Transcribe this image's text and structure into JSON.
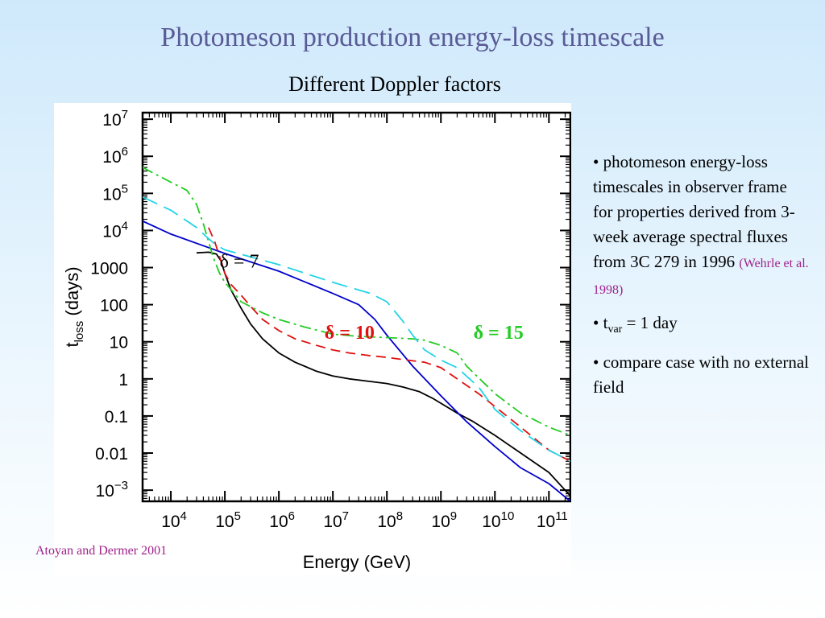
{
  "slide": {
    "title": "Photomeson production energy-loss timescale",
    "subtitle": "Different Doppler factors",
    "credit": "Atoyan and Dermer 2001"
  },
  "bullets": {
    "b1_text": "• photomeson energy-loss timescales in observer frame for properties derived from 3-week average spectral fluxes from 3C 279 in 1996",
    "b1_cite": "(Wehrle et al. 1998)",
    "b2_prefix": "• t",
    "b2_sub": "var",
    "b2_suffix": " = 1 day",
    "b3_text": "• compare case with no external field"
  },
  "chart_data": {
    "type": "line",
    "xlabel": "Energy   (GeV)",
    "ylabel": "t_loss  (days)",
    "x_scale": "log",
    "y_scale": "log",
    "xlim": [
      3000,
      250000000000.0
    ],
    "ylim": [
      0.0005,
      15000000.0
    ],
    "x_ticks": [
      {
        "value": 10000.0,
        "base": "10",
        "exp": "4"
      },
      {
        "value": 100000.0,
        "base": "10",
        "exp": "5"
      },
      {
        "value": 1000000.0,
        "base": "10",
        "exp": "6"
      },
      {
        "value": 10000000.0,
        "base": "10",
        "exp": "7"
      },
      {
        "value": 100000000.0,
        "base": "10",
        "exp": "8"
      },
      {
        "value": 1000000000.0,
        "base": "10",
        "exp": "9"
      },
      {
        "value": 10000000000.0,
        "base": "10",
        "exp": "10"
      },
      {
        "value": 100000000000.0,
        "base": "10",
        "exp": "11"
      }
    ],
    "y_ticks": [
      {
        "value": 0.001,
        "base": "10",
        "exp": "−3"
      },
      {
        "value": 0.01,
        "text": "0.01"
      },
      {
        "value": 0.1,
        "text": "0.1"
      },
      {
        "value": 1,
        "text": "1"
      },
      {
        "value": 10,
        "text": "10"
      },
      {
        "value": 100,
        "text": "100"
      },
      {
        "value": 1000,
        "text": "1000"
      },
      {
        "value": 10000,
        "base": "10",
        "exp": "4"
      },
      {
        "value": 100000,
        "base": "10",
        "exp": "5"
      },
      {
        "value": 1000000,
        "base": "10",
        "exp": "6"
      },
      {
        "value": 10000000,
        "base": "10",
        "exp": "7"
      }
    ],
    "series": [
      {
        "color": "#000000",
        "dash": "solid",
        "x": [
          30000.0,
          50000.0,
          70000.0,
          85000.0,
          100000.0,
          130000.0,
          200000.0,
          300000.0,
          500000.0,
          1000000.0,
          2000000.0,
          5000000.0,
          10000000.0,
          20000000.0,
          50000000.0,
          100000000.0,
          200000000.0,
          400000000.0,
          700000000.0,
          1000000000.0,
          2000000000.0,
          4000000000.0,
          10000000000.0,
          30000000000.0,
          100000000000.0,
          250000000000.0
        ],
        "y": [
          2500,
          2600,
          2300,
          1500,
          700,
          250,
          80,
          30,
          12,
          5,
          2.8,
          1.6,
          1.2,
          1.0,
          0.85,
          0.75,
          0.6,
          0.45,
          0.3,
          0.22,
          0.12,
          0.07,
          0.03,
          0.01,
          0.003,
          0.0007
        ]
      },
      {
        "name": "δ = 7",
        "color": "#0000cc",
        "dash": "solid",
        "x": [
          3000,
          10000.0,
          100000.0,
          1000000.0,
          10000000.0,
          30000000.0,
          60000000.0,
          100000000.0,
          300000000.0,
          1000000000.0,
          3000000000.0,
          10000000000.0,
          30000000000.0,
          100000000000.0,
          250000000000.0
        ],
        "y": [
          18000,
          8000,
          2400,
          800,
          200,
          100,
          40,
          15,
          2.2,
          0.35,
          0.07,
          0.015,
          0.004,
          0.0015,
          0.0005
        ]
      },
      {
        "name": "δ = 10",
        "color": "#e01010",
        "dash": "dashed",
        "x": [
          50000.0,
          65000.0,
          85000.0,
          100000.0,
          130000.0,
          200000.0,
          300000.0,
          500000.0,
          1000000.0,
          2000000.0,
          5000000.0,
          10000000.0,
          20000000.0,
          50000000.0,
          100000000.0,
          200000000.0,
          500000000.0,
          1000000000.0,
          2000000000.0,
          5000000000.0,
          10000000000.0,
          30000000000.0,
          100000000000.0,
          250000000000.0
        ],
        "y": [
          12000,
          5000,
          1500,
          700,
          350,
          180,
          90,
          40,
          20,
          12,
          8,
          6,
          5,
          4.2,
          3.8,
          3.3,
          2.8,
          2.0,
          1.0,
          0.4,
          0.18,
          0.05,
          0.012,
          0.006
        ]
      },
      {
        "name": "δ = 15",
        "color": "#22cc22",
        "dash": "dashdot",
        "x": [
          3000,
          10000.0,
          20000.0,
          30000.0,
          40000.0,
          50000.0,
          60000.0,
          80000.0,
          100000.0,
          150000.0,
          200000.0,
          500000.0,
          1000000.0,
          3000000.0,
          10000000.0,
          30000000.0,
          100000000.0,
          300000000.0,
          500000000.0,
          1000000000.0,
          2000000000.0,
          3000000000.0,
          10000000000.0,
          30000000000.0,
          100000000000.0,
          250000000000.0
        ],
        "y": [
          500000,
          200000,
          120000,
          50000,
          15000,
          5000,
          2000,
          700,
          400,
          200,
          120,
          60,
          40,
          25,
          16,
          14,
          13,
          12,
          11,
          8,
          5,
          2.2,
          0.4,
          0.12,
          0.05,
          0.03
        ]
      },
      {
        "color": "#22d4e6",
        "dash": "longdash",
        "x": [
          3000,
          10000.0,
          30000.0,
          50000.0,
          70000.0,
          100000.0,
          1000000.0,
          10000000.0,
          50000000.0,
          100000000.0,
          200000000.0,
          300000000.0,
          500000000.0,
          1000000000.0,
          2000000000.0,
          5000000000.0,
          10000000000.0,
          30000000000.0,
          100000000000.0,
          250000000000.0
        ],
        "y": [
          80000,
          35000,
          12000,
          6000,
          4000,
          3000,
          1200,
          400,
          200,
          120,
          35,
          15,
          6,
          3.2,
          2.0,
          0.6,
          0.15,
          0.04,
          0.012,
          0.006
        ]
      }
    ],
    "annotations": [
      {
        "text": "δ = 7",
        "x": 80000.0,
        "y": 1000,
        "color": "#000000"
      },
      {
        "text": "δ = 10",
        "x": 7000000.0,
        "y": 12,
        "color": "#e01010"
      },
      {
        "text": "δ = 15",
        "x": 4000000000.0,
        "y": 12,
        "color": "#22cc22"
      }
    ]
  }
}
